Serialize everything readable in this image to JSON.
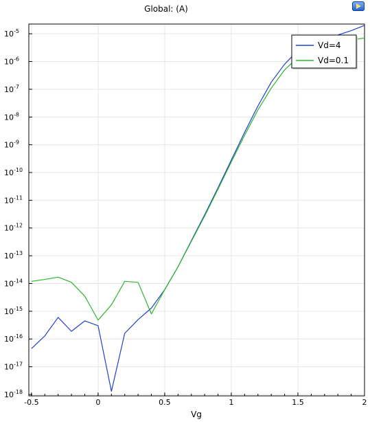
{
  "header": {
    "title": "Global:  (A)",
    "export_icon": "export-image-icon"
  },
  "chart_data": {
    "type": "line",
    "title": "Global:  (A)",
    "xlabel": "Vg",
    "ylabel": "",
    "xlim": [
      -0.52,
      2.0
    ],
    "ylim_log10": [
      -18.05,
      -4.65
    ],
    "y_scale": "log",
    "x_ticks": [
      -0.5,
      0,
      0.5,
      1,
      1.5,
      2
    ],
    "x_tick_labels": [
      "-0.5",
      "0",
      "0.5",
      "1",
      "1.5",
      "2"
    ],
    "y_tick_exponents": [
      -18,
      -17,
      -16,
      -15,
      -14,
      -13,
      -12,
      -11,
      -10,
      -9,
      -8,
      -7,
      -6,
      -5
    ],
    "y_tick_labels": [
      "10",
      "10",
      "10",
      "10",
      "10",
      "10",
      "10",
      "10",
      "10",
      "10",
      "10",
      "10",
      "10",
      "10"
    ],
    "y_tick_superscripts": [
      "-18",
      "-17",
      "-16",
      "-15",
      "-14",
      "-13",
      "-12",
      "-11",
      "-10",
      "-9",
      "-8",
      "-7",
      "-6",
      "-5"
    ],
    "grid": true,
    "legend_position": "top-right",
    "series": [
      {
        "name": "Vd=4",
        "color": "#1f3fd0",
        "x": [
          -0.5,
          -0.4,
          -0.3,
          -0.2,
          -0.1,
          0.0,
          0.1,
          0.2,
          0.3,
          0.4,
          0.5,
          0.6,
          0.7,
          0.8,
          0.9,
          1.0,
          1.1,
          1.2,
          1.3,
          1.4,
          1.5,
          1.6,
          1.7,
          1.8,
          1.9,
          2.0
        ],
        "y": [
          4.5e-17,
          1.3e-16,
          6e-16,
          1.9e-16,
          4.5e-16,
          3e-16,
          1.3e-18,
          1.6e-16,
          5e-16,
          1.3e-15,
          6e-15,
          4e-14,
          3.5e-13,
          3e-12,
          2.8e-11,
          2.8e-10,
          2.8e-09,
          2.5e-08,
          1.8e-07,
          8e-07,
          2.5e-06,
          4.5e-06,
          6.5e-06,
          9e-06,
          1.3e-05,
          2e-05
        ]
      },
      {
        "name": "Vd=0.1",
        "color": "#2ab52a",
        "x": [
          -0.5,
          -0.4,
          -0.3,
          -0.2,
          -0.1,
          0.0,
          0.1,
          0.2,
          0.3,
          0.4,
          0.5,
          0.6,
          0.7,
          0.8,
          0.9,
          1.0,
          1.1,
          1.2,
          1.3,
          1.4,
          1.5,
          1.6,
          1.7,
          1.8,
          1.9,
          2.0
        ],
        "y": [
          1.2e-14,
          1.4e-14,
          1.7e-14,
          1.1e-14,
          3.5e-15,
          4.8e-16,
          1.7e-15,
          1.2e-14,
          1.1e-14,
          8e-16,
          6e-15,
          4e-14,
          3.3e-13,
          2.7e-12,
          2.5e-11,
          2.4e-10,
          2.2e-09,
          1.8e-08,
          1.1e-07,
          5e-07,
          1.4e-06,
          2.6e-06,
          3.8e-06,
          5e-06,
          6e-06,
          7e-06
        ]
      }
    ]
  }
}
